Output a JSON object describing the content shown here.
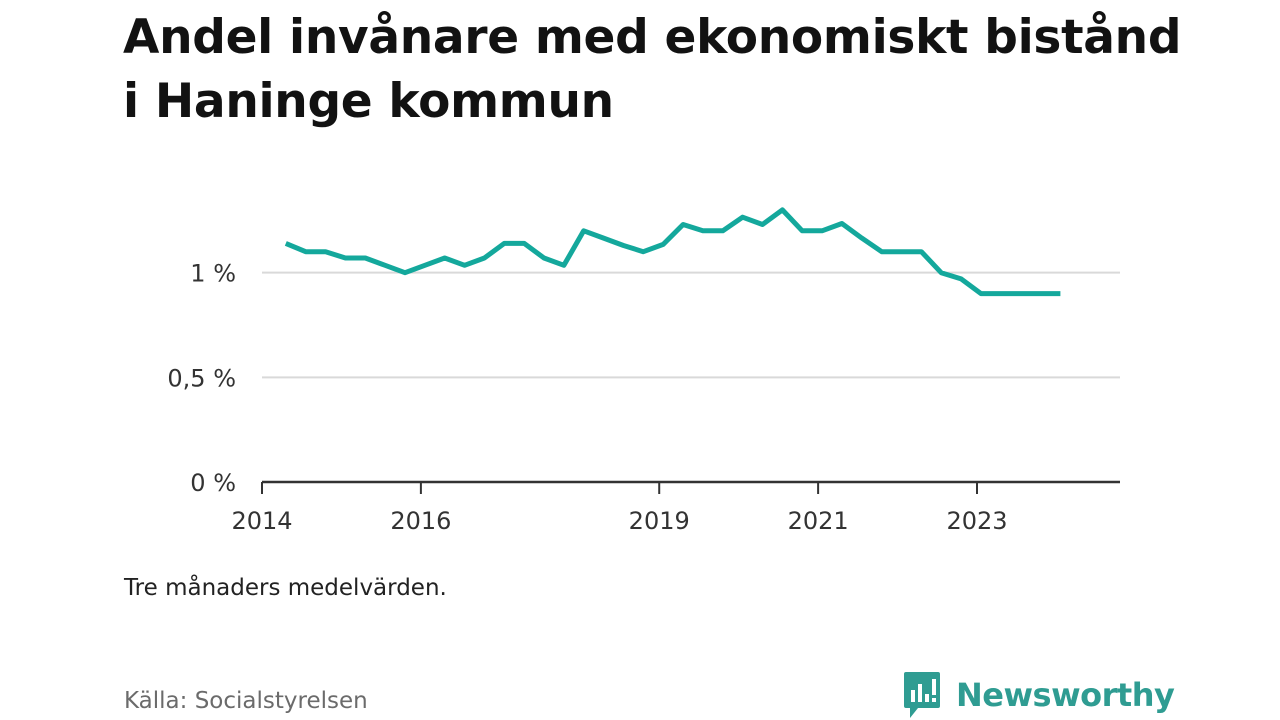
{
  "title": "Andel invånare med ekonomiskt bistånd i Haninge kommun",
  "note": "Tre månaders medelvärden.",
  "source": "Källa: Socialstyrelsen",
  "brand": {
    "name": "Newsworthy",
    "icon": "newsworthy-logo-icon",
    "color": "#2f9c92"
  },
  "chart_data": {
    "type": "line",
    "title": "Andel invånare med ekonomiskt bistånd i Haninge kommun",
    "xlabel": "",
    "ylabel": "",
    "xlim": [
      2014.0,
      2024.8
    ],
    "ylim": [
      0,
      1.5
    ],
    "yticks": [
      {
        "value": 0,
        "label": "0 %"
      },
      {
        "value": 0.5,
        "label": "0,5 %"
      },
      {
        "value": 1,
        "label": "1 %"
      }
    ],
    "xticks": [
      {
        "value": 2014,
        "label": "2014"
      },
      {
        "value": 2016,
        "label": "2016"
      },
      {
        "value": 2019,
        "label": "2019"
      },
      {
        "value": 2021,
        "label": "2021"
      },
      {
        "value": 2023,
        "label": "2023"
      }
    ],
    "grid": true,
    "series": [
      {
        "name": "",
        "color": "#14a89c",
        "points": [
          [
            2014.3,
            1.14
          ],
          [
            2014.55,
            1.1
          ],
          [
            2014.8,
            1.1
          ],
          [
            2015.05,
            1.07
          ],
          [
            2015.3,
            1.07
          ],
          [
            2015.55,
            1.035
          ],
          [
            2015.8,
            1.0
          ],
          [
            2016.05,
            1.035
          ],
          [
            2016.3,
            1.07
          ],
          [
            2016.55,
            1.035
          ],
          [
            2016.8,
            1.07
          ],
          [
            2017.05,
            1.14
          ],
          [
            2017.3,
            1.14
          ],
          [
            2017.55,
            1.07
          ],
          [
            2017.8,
            1.035
          ],
          [
            2018.05,
            1.2
          ],
          [
            2018.3,
            1.165
          ],
          [
            2018.55,
            1.13
          ],
          [
            2018.8,
            1.1
          ],
          [
            2019.05,
            1.135
          ],
          [
            2019.3,
            1.23
          ],
          [
            2019.55,
            1.2
          ],
          [
            2019.8,
            1.2
          ],
          [
            2020.05,
            1.265
          ],
          [
            2020.3,
            1.23
          ],
          [
            2020.55,
            1.3
          ],
          [
            2020.8,
            1.2
          ],
          [
            2021.05,
            1.2
          ],
          [
            2021.3,
            1.235
          ],
          [
            2021.55,
            1.165
          ],
          [
            2021.8,
            1.1
          ],
          [
            2022.05,
            1.1
          ],
          [
            2022.3,
            1.1
          ],
          [
            2022.55,
            1.0
          ],
          [
            2022.8,
            0.97
          ],
          [
            2023.05,
            0.9
          ],
          [
            2023.3,
            0.9
          ],
          [
            2023.55,
            0.9
          ],
          [
            2023.8,
            0.9
          ],
          [
            2024.05,
            0.9
          ]
        ]
      }
    ]
  }
}
